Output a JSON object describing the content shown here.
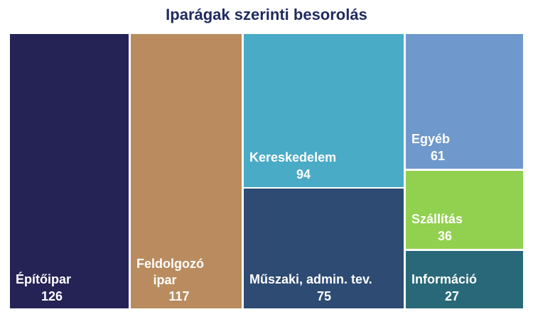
{
  "chart_data": {
    "type": "treemap",
    "title": "Iparágak szerinti besorolás",
    "items": [
      {
        "label": "Építőipar",
        "value": 126,
        "color": "#252356"
      },
      {
        "label": "Feldolgozó ipar",
        "value": 117,
        "color": "#b98b5e"
      },
      {
        "label": "Kereskedelem",
        "value": 94,
        "color": "#4aabc6"
      },
      {
        "label": "Műszaki, admin. tev.",
        "value": 75,
        "color": "#2d4b73"
      },
      {
        "label": "Egyéb",
        "value": 61,
        "color": "#6f99cc"
      },
      {
        "label": "Szállítás",
        "value": 36,
        "color": "#92d050"
      },
      {
        "label": "Információ",
        "value": 27,
        "color": "#286878"
      }
    ]
  }
}
